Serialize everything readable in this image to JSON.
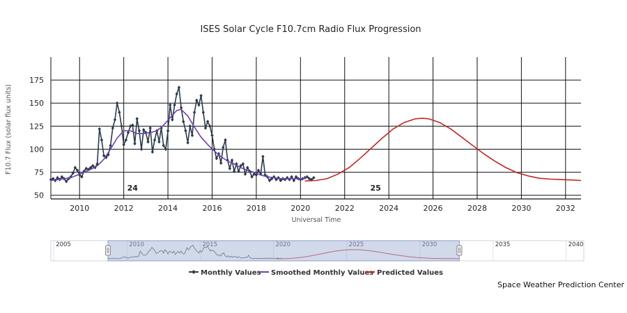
{
  "chart_data": {
    "type": "line",
    "title": "ISES Solar Cycle F10.7cm Radio Flux Progression",
    "xlabel": "Universal Time",
    "ylabel": "F10.7 Flux (solar flux units)",
    "xlim": [
      2008.7,
      2032.7
    ],
    "ylim": [
      46,
      200
    ],
    "y_ticks": [
      "50",
      "75",
      "100",
      "125",
      "150",
      "175"
    ],
    "y_tick_values": [
      50,
      75,
      100,
      125,
      150,
      175
    ],
    "x_ticks": [
      "2010",
      "2012",
      "2014",
      "2016",
      "2018",
      "2020",
      "2022",
      "2024",
      "2026",
      "2028",
      "2030",
      "2032"
    ],
    "x_tick_values": [
      2010,
      2012,
      2014,
      2016,
      2018,
      2020,
      2022,
      2024,
      2026,
      2028,
      2030,
      2032
    ],
    "grid": true,
    "legend_position": "bottom",
    "annotations": [
      {
        "text": "24",
        "x": 2012.4,
        "y": 58
      },
      {
        "text": "25",
        "x": 2023.4,
        "y": 58
      }
    ],
    "series": [
      {
        "name": "Monthly Values",
        "color": "#2a3a4a",
        "marker": "diamond",
        "x": [
          2008.7,
          2008.8,
          2008.9,
          2009.0,
          2009.1,
          2009.2,
          2009.3,
          2009.4,
          2009.5,
          2009.6,
          2009.7,
          2009.8,
          2009.9,
          2010.0,
          2010.1,
          2010.2,
          2010.3,
          2010.4,
          2010.5,
          2010.6,
          2010.7,
          2010.8,
          2010.9,
          2011.0,
          2011.1,
          2011.2,
          2011.3,
          2011.4,
          2011.5,
          2011.6,
          2011.7,
          2011.8,
          2011.9,
          2012.0,
          2012.1,
          2012.2,
          2012.3,
          2012.4,
          2012.5,
          2012.6,
          2012.7,
          2012.8,
          2012.9,
          2013.0,
          2013.1,
          2013.2,
          2013.3,
          2013.4,
          2013.5,
          2013.6,
          2013.7,
          2013.8,
          2013.9,
          2014.0,
          2014.1,
          2014.2,
          2014.3,
          2014.4,
          2014.5,
          2014.6,
          2014.7,
          2014.8,
          2014.9,
          2015.0,
          2015.1,
          2015.2,
          2015.3,
          2015.4,
          2015.5,
          2015.6,
          2015.7,
          2015.8,
          2015.9,
          2016.0,
          2016.1,
          2016.2,
          2016.3,
          2016.4,
          2016.5,
          2016.6,
          2016.7,
          2016.8,
          2016.9,
          2017.0,
          2017.1,
          2017.2,
          2017.3,
          2017.4,
          2017.5,
          2017.6,
          2017.7,
          2017.8,
          2017.9,
          2018.0,
          2018.1,
          2018.2,
          2018.3,
          2018.4,
          2018.5,
          2018.6,
          2018.7,
          2018.8,
          2018.9,
          2019.0,
          2019.1,
          2019.2,
          2019.3,
          2019.4,
          2019.5,
          2019.6,
          2019.7,
          2019.8,
          2019.9,
          2020.0,
          2020.1,
          2020.2,
          2020.3,
          2020.4,
          2020.5,
          2020.6
        ],
        "y": [
          67,
          68,
          66,
          69,
          67,
          70,
          68,
          65,
          68,
          70,
          74,
          80,
          77,
          72,
          70,
          76,
          79,
          78,
          80,
          82,
          80,
          84,
          122,
          110,
          93,
          91,
          94,
          104,
          123,
          132,
          150,
          140,
          125,
          105,
          110,
          118,
          125,
          126,
          106,
          133,
          120,
          100,
          121,
          118,
          108,
          123,
          97,
          110,
          120,
          108,
          123,
          104,
          100,
          120,
          148,
          132,
          148,
          160,
          167,
          145,
          130,
          120,
          107,
          125,
          115,
          140,
          153,
          148,
          158,
          140,
          123,
          130,
          125,
          115,
          100,
          90,
          95,
          85,
          102,
          110,
          88,
          79,
          88,
          76,
          84,
          76,
          82,
          84,
          73,
          80,
          76,
          70,
          73,
          72,
          77,
          73,
          92,
          72,
          70,
          66,
          68,
          70,
          67,
          69,
          66,
          68,
          67,
          69,
          67,
          70,
          66,
          70,
          68,
          67,
          68,
          69,
          70,
          68,
          67,
          69
        ]
      },
      {
        "name": "Smoothed Monthly Values",
        "color": "#7040b0",
        "x": [
          2008.7,
          2009.0,
          2009.3,
          2009.6,
          2009.9,
          2010.2,
          2010.5,
          2010.8,
          2011.1,
          2011.4,
          2011.7,
          2012.0,
          2012.3,
          2012.6,
          2012.9,
          2013.2,
          2013.5,
          2013.8,
          2014.1,
          2014.4,
          2014.6,
          2014.9,
          2015.2,
          2015.5,
          2015.8,
          2016.1,
          2016.4,
          2016.7,
          2017.0,
          2017.3,
          2017.6,
          2017.9,
          2018.2,
          2018.5,
          2018.8,
          2019.1,
          2019.4,
          2019.7,
          2020.0,
          2020.3
        ],
        "y": [
          66,
          67,
          68,
          69,
          72,
          75,
          78,
          82,
          89,
          100,
          112,
          120,
          120,
          117,
          117,
          118,
          120,
          126,
          134,
          142,
          143,
          136,
          124,
          113,
          105,
          98,
          92,
          87,
          84,
          80,
          77,
          75,
          72,
          70,
          69,
          68,
          68,
          68,
          68,
          69
        ]
      },
      {
        "name": "Predicted Values",
        "color": "#c0281e",
        "x": [
          2020.2,
          2020.7,
          2021.2,
          2021.7,
          2022.2,
          2022.7,
          2023.2,
          2023.7,
          2024.2,
          2024.7,
          2025.2,
          2025.5,
          2025.8,
          2026.3,
          2026.8,
          2027.3,
          2027.8,
          2028.3,
          2028.8,
          2029.3,
          2029.8,
          2030.3,
          2030.8,
          2031.3,
          2031.8,
          2032.3,
          2032.7
        ],
        "y": [
          65.5,
          66,
          68,
          73,
          80,
          90,
          101,
          112,
          122,
          129,
          133,
          133.5,
          133,
          129,
          122,
          113,
          104,
          95,
          87,
          80,
          74.5,
          71,
          68.5,
          67.5,
          67,
          66.5,
          66
        ]
      }
    ]
  },
  "navigator": {
    "x_ticks": [
      "2005",
      "2010",
      "2015",
      "2020",
      "2025",
      "2030",
      "2035",
      "2040"
    ],
    "x_tick_values": [
      2005,
      2010,
      2015,
      2020,
      2025,
      2030,
      2035,
      2040
    ],
    "xlim": [
      2004.8,
      2041.2
    ],
    "selection": [
      2008.7,
      2032.7
    ]
  },
  "credit": "Space Weather Prediction Center"
}
